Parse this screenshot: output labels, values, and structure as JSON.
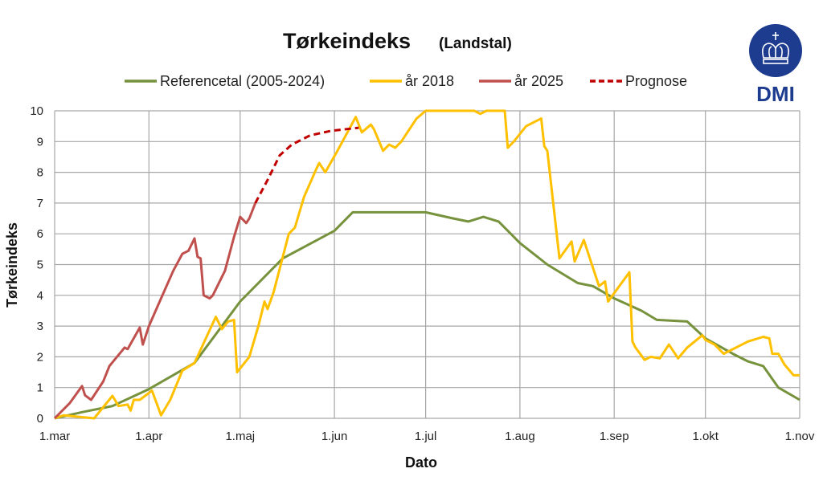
{
  "chart_data": {
    "type": "line",
    "title": "Tørkeindeks",
    "subtitle": "(Landstal)",
    "xlabel": "Dato",
    "ylabel": "Tørkeindeks",
    "x_ticks": [
      "1.mar",
      "1.apr",
      "1.maj",
      "1.jun",
      "1.jul",
      "1.aug",
      "1.sep",
      "1.okt",
      "1.nov"
    ],
    "xlim": [
      "03-01",
      "11-01"
    ],
    "ylim": [
      0,
      10
    ],
    "y_ticks": [
      "0",
      "1",
      "2",
      "3",
      "4",
      "5",
      "6",
      "7",
      "8",
      "9",
      "10"
    ],
    "grid": true,
    "legend_position": "top",
    "series": [
      {
        "name": "Referencetal (2005-2024)",
        "color": "#76923c",
        "dashed": false,
        "points": [
          [
            "03-01",
            0
          ],
          [
            "03-10",
            0.2
          ],
          [
            "03-20",
            0.4
          ],
          [
            "04-01",
            0.95
          ],
          [
            "04-16",
            1.8
          ],
          [
            "05-01",
            3.8
          ],
          [
            "05-15",
            5.2
          ],
          [
            "06-01",
            6.1
          ],
          [
            "06-07",
            6.7
          ],
          [
            "06-20",
            6.7
          ],
          [
            "07-01",
            6.7
          ],
          [
            "07-10",
            6.5
          ],
          [
            "07-15",
            6.4
          ],
          [
            "07-20",
            6.55
          ],
          [
            "07-25",
            6.4
          ],
          [
            "08-01",
            5.7
          ],
          [
            "08-10",
            5.0
          ],
          [
            "08-20",
            4.4
          ],
          [
            "08-25",
            4.3
          ],
          [
            "09-01",
            3.9
          ],
          [
            "09-10",
            3.5
          ],
          [
            "09-15",
            3.2
          ],
          [
            "09-25",
            3.15
          ],
          [
            "10-01",
            2.6
          ],
          [
            "10-10",
            2.1
          ],
          [
            "10-15",
            1.85
          ],
          [
            "10-20",
            1.7
          ],
          [
            "10-25",
            1.0
          ],
          [
            "11-01",
            0.6
          ]
        ]
      },
      {
        "name": "år 2018",
        "color": "#ffc000",
        "dashed": false,
        "points": [
          [
            "03-01",
            0
          ],
          [
            "03-04",
            0.1
          ],
          [
            "03-14",
            0
          ],
          [
            "03-20",
            0.73
          ],
          [
            "03-22",
            0.4
          ],
          [
            "03-25",
            0.45
          ],
          [
            "03-26",
            0.25
          ],
          [
            "03-27",
            0.6
          ],
          [
            "03-29",
            0.6
          ],
          [
            "04-02",
            0.9
          ],
          [
            "04-05",
            0.1
          ],
          [
            "04-08",
            0.6
          ],
          [
            "04-12",
            1.55
          ],
          [
            "04-16",
            1.8
          ],
          [
            "04-23",
            3.3
          ],
          [
            "04-25",
            2.9
          ],
          [
            "04-27",
            3.15
          ],
          [
            "04-29",
            3.2
          ],
          [
            "04-30",
            1.5
          ],
          [
            "05-04",
            2.0
          ],
          [
            "05-07",
            3.0
          ],
          [
            "05-09",
            3.8
          ],
          [
            "05-10",
            3.55
          ],
          [
            "05-12",
            4.1
          ],
          [
            "05-17",
            6.0
          ],
          [
            "05-19",
            6.2
          ],
          [
            "05-22",
            7.2
          ],
          [
            "05-26",
            8.1
          ],
          [
            "05-27",
            8.3
          ],
          [
            "05-29",
            8.0
          ],
          [
            "06-02",
            8.7
          ],
          [
            "06-08",
            9.8
          ],
          [
            "06-10",
            9.3
          ],
          [
            "06-13",
            9.55
          ],
          [
            "06-14",
            9.4
          ],
          [
            "06-17",
            8.7
          ],
          [
            "06-19",
            8.9
          ],
          [
            "06-21",
            8.8
          ],
          [
            "06-23",
            9.0
          ],
          [
            "06-28",
            9.75
          ],
          [
            "07-01",
            10
          ],
          [
            "07-17",
            10
          ],
          [
            "07-19",
            9.9
          ],
          [
            "07-21",
            10
          ],
          [
            "07-27",
            10
          ],
          [
            "07-28",
            8.8
          ],
          [
            "07-30",
            9.0
          ],
          [
            "08-03",
            9.5
          ],
          [
            "08-08",
            9.75
          ],
          [
            "08-09",
            8.85
          ],
          [
            "08-10",
            8.7
          ],
          [
            "08-14",
            5.2
          ],
          [
            "08-18",
            5.75
          ],
          [
            "08-19",
            5.1
          ],
          [
            "08-22",
            5.8
          ],
          [
            "08-25",
            4.9
          ],
          [
            "08-27",
            4.3
          ],
          [
            "08-29",
            4.45
          ],
          [
            "08-30",
            3.8
          ],
          [
            "09-06",
            4.75
          ],
          [
            "09-07",
            2.5
          ],
          [
            "09-08",
            2.3
          ],
          [
            "09-11",
            1.9
          ],
          [
            "09-13",
            2.0
          ],
          [
            "09-16",
            1.95
          ],
          [
            "09-19",
            2.4
          ],
          [
            "09-22",
            1.95
          ],
          [
            "09-25",
            2.3
          ],
          [
            "09-30",
            2.7
          ],
          [
            "10-01",
            2.55
          ],
          [
            "10-04",
            2.4
          ],
          [
            "10-07",
            2.1
          ],
          [
            "10-15",
            2.5
          ],
          [
            "10-20",
            2.65
          ],
          [
            "10-22",
            2.6
          ],
          [
            "10-23",
            2.1
          ],
          [
            "10-25",
            2.1
          ],
          [
            "10-27",
            1.75
          ],
          [
            "10-30",
            1.4
          ],
          [
            "11-01",
            1.4
          ]
        ]
      },
      {
        "name": "år 2025",
        "color": "#c0504d",
        "dashed": false,
        "points": [
          [
            "03-01",
            0
          ],
          [
            "03-06",
            0.5
          ],
          [
            "03-10",
            1.05
          ],
          [
            "03-11",
            0.75
          ],
          [
            "03-13",
            0.6
          ],
          [
            "03-17",
            1.2
          ],
          [
            "03-19",
            1.7
          ],
          [
            "03-24",
            2.3
          ],
          [
            "03-25",
            2.25
          ],
          [
            "03-29",
            2.95
          ],
          [
            "03-30",
            2.4
          ],
          [
            "04-01",
            3.0
          ],
          [
            "04-05",
            3.9
          ],
          [
            "04-09",
            4.8
          ],
          [
            "04-12",
            5.35
          ],
          [
            "04-14",
            5.45
          ],
          [
            "04-16",
            5.85
          ],
          [
            "04-17",
            5.25
          ],
          [
            "04-18",
            5.2
          ],
          [
            "04-19",
            4.0
          ],
          [
            "04-21",
            3.9
          ],
          [
            "04-22",
            4.0
          ],
          [
            "04-26",
            4.8
          ],
          [
            "04-29",
            5.9
          ],
          [
            "05-01",
            6.55
          ],
          [
            "05-03",
            6.35
          ],
          [
            "05-04",
            6.5
          ],
          [
            "05-06",
            7.0
          ]
        ]
      },
      {
        "name": "Prognose",
        "color": "#c00000",
        "dashed": true,
        "points": [
          [
            "05-06",
            7.0
          ],
          [
            "05-10",
            7.75
          ],
          [
            "05-14",
            8.55
          ],
          [
            "05-18",
            8.9
          ],
          [
            "05-24",
            9.2
          ],
          [
            "05-31",
            9.35
          ],
          [
            "06-09",
            9.45
          ]
        ]
      }
    ]
  },
  "logo": {
    "text": "DMI",
    "color": "#1d3c8f"
  }
}
